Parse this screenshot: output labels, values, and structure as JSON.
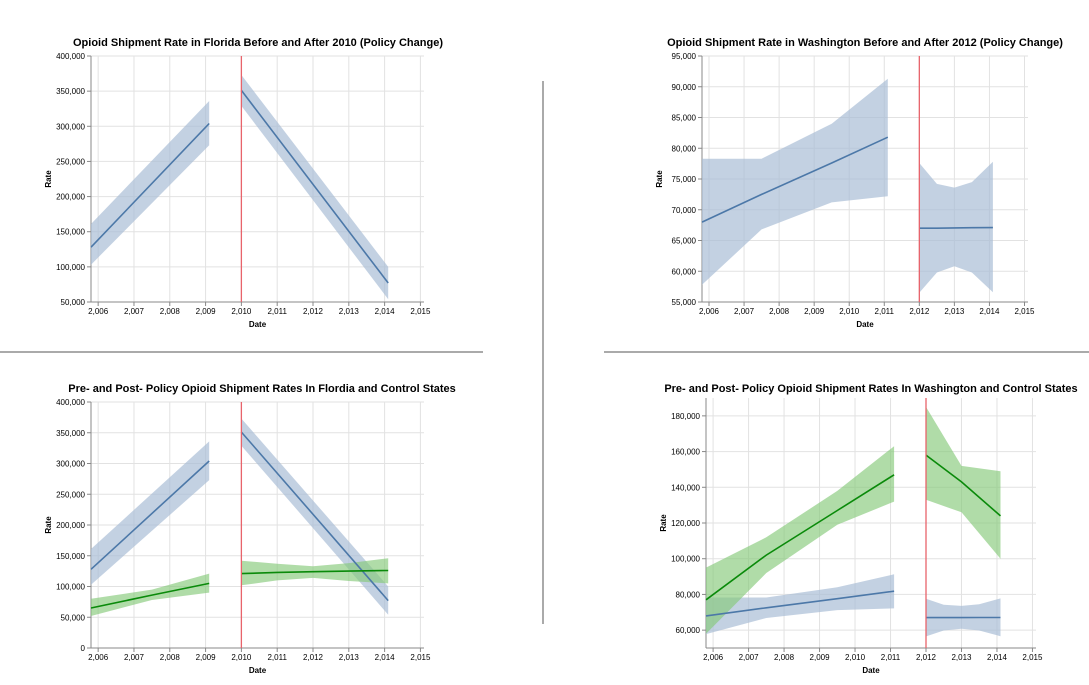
{
  "colors": {
    "treatment_line": "#4c78a8",
    "treatment_band": "#aabdd6",
    "control_line": "#0a8a0a",
    "control_band": "#86c97a",
    "policy_rule": "#e8636b",
    "grid": "#e2e2e2",
    "separator": "#555555"
  },
  "chart_data": [
    {
      "id": "fl_top",
      "type": "line",
      "title": "Opioid Shipment Rate in Florida Before and After 2010 (Policy Change)",
      "xlabel": "Date",
      "ylabel": "Rate",
      "xlim": [
        2005.8,
        2015.1
      ],
      "ylim": [
        50000,
        400000
      ],
      "x_ticks": [
        "2,006",
        "2,007",
        "2,008",
        "2,009",
        "2,010",
        "2,011",
        "2,012",
        "2,013",
        "2,014",
        "2,015"
      ],
      "y_ticks": [
        "50,000",
        "100,000",
        "150,000",
        "200,000",
        "250,000",
        "300,000",
        "350,000",
        "400,000"
      ],
      "grid": true,
      "policy_year": 2010,
      "series": [
        {
          "group": "treatment",
          "segments": [
            {
              "x": [
                2005.8,
                2009.1
              ],
              "y": [
                128000,
                304000
              ],
              "lower": [
                103000,
                273000
              ],
              "upper": [
                161000,
                336000
              ]
            },
            {
              "x": [
                2010.0,
                2014.1
              ],
              "y": [
                351000,
                77000
              ],
              "lower": [
                329000,
                54000
              ],
              "upper": [
                373000,
                100000
              ]
            }
          ]
        }
      ]
    },
    {
      "id": "wa_top",
      "type": "line",
      "title": "Opioid Shipment Rate in Washington Before and After 2012 (Policy Change)",
      "xlabel": "Date",
      "ylabel": "Rate",
      "xlim": [
        2005.8,
        2015.1
      ],
      "ylim": [
        55000,
        95000
      ],
      "x_ticks": [
        "2,006",
        "2,007",
        "2,008",
        "2,009",
        "2,010",
        "2,011",
        "2,012",
        "2,013",
        "2,014",
        "2,015"
      ],
      "y_ticks": [
        "55,000",
        "60,000",
        "65,000",
        "70,000",
        "75,000",
        "80,000",
        "85,000",
        "90,000",
        "95,000"
      ],
      "grid": true,
      "policy_year": 2012,
      "series": [
        {
          "group": "treatment",
          "segments": [
            {
              "x": [
                2005.8,
                2007.5,
                2009.5,
                2011.1
              ],
              "y": [
                68000,
                72500,
                77600,
                81800
              ],
              "lower": [
                57800,
                66800,
                71200,
                72200
              ],
              "upper": [
                78300,
                78300,
                84000,
                91300
              ]
            },
            {
              "x": [
                2012.0,
                2012.5,
                2013.0,
                2013.5,
                2014.1
              ],
              "y": [
                67000,
                67000,
                67050,
                67080,
                67100
              ],
              "lower": [
                56500,
                59800,
                60800,
                59800,
                56600
              ],
              "upper": [
                77600,
                74200,
                73600,
                74500,
                77800
              ]
            }
          ]
        }
      ]
    },
    {
      "id": "fl_bottom",
      "type": "line",
      "title": "Pre- and Post- Policy Opioid Shipment Rates In Flordia and Control States",
      "xlabel": "Date",
      "ylabel": "Rate",
      "xlim": [
        2005.8,
        2015.1
      ],
      "ylim": [
        0,
        400000
      ],
      "x_ticks": [
        "2,006",
        "2,007",
        "2,008",
        "2,009",
        "2,010",
        "2,011",
        "2,012",
        "2,013",
        "2,014",
        "2,015"
      ],
      "y_ticks": [
        "0",
        "50,000",
        "100,000",
        "150,000",
        "200,000",
        "250,000",
        "300,000",
        "350,000",
        "400,000"
      ],
      "grid": true,
      "policy_year": 2010,
      "series": [
        {
          "group": "treatment",
          "segments": [
            {
              "x": [
                2005.8,
                2009.1
              ],
              "y": [
                128000,
                304000
              ],
              "lower": [
                103000,
                273000
              ],
              "upper": [
                161000,
                336000
              ]
            },
            {
              "x": [
                2010.0,
                2014.1
              ],
              "y": [
                351000,
                77000
              ],
              "lower": [
                329000,
                54000
              ],
              "upper": [
                373000,
                100000
              ]
            }
          ]
        },
        {
          "group": "control",
          "segments": [
            {
              "x": [
                2005.8,
                2007.5,
                2009.1
              ],
              "y": [
                65000,
                86000,
                105000
              ],
              "lower": [
                52000,
                78000,
                90000
              ],
              "upper": [
                80000,
                95000,
                121000
              ]
            },
            {
              "x": [
                2010.0,
                2011.0,
                2012.0,
                2013.0,
                2014.1
              ],
              "y": [
                121000,
                123000,
                124000,
                125000,
                126000
              ],
              "lower": [
                102000,
                110000,
                114000,
                109000,
                105000
              ],
              "upper": [
                142000,
                137000,
                133000,
                138000,
                146000
              ]
            }
          ]
        }
      ]
    },
    {
      "id": "wa_bottom",
      "type": "line",
      "title": "Pre- and Post- Policy Opioid Shipment Rates In Washington and Control States",
      "xlabel": "Date",
      "ylabel": "Rate",
      "xlim": [
        2005.8,
        2015.1
      ],
      "ylim": [
        50000,
        190000
      ],
      "x_ticks": [
        "2,006",
        "2,007",
        "2,008",
        "2,009",
        "2,010",
        "2,011",
        "2,012",
        "2,013",
        "2,014",
        "2,015"
      ],
      "y_ticks": [
        "60,000",
        "80,000",
        "100,000",
        "120,000",
        "140,000",
        "160,000",
        "180,000"
      ],
      "grid": true,
      "policy_year": 2012,
      "series": [
        {
          "group": "treatment",
          "segments": [
            {
              "x": [
                2005.8,
                2007.5,
                2009.5,
                2011.1
              ],
              "y": [
                68000,
                72500,
                77600,
                81800
              ],
              "lower": [
                57800,
                66800,
                71200,
                72200
              ],
              "upper": [
                78300,
                78300,
                84000,
                91300
              ]
            },
            {
              "x": [
                2012.0,
                2012.5,
                2013.0,
                2013.5,
                2014.1
              ],
              "y": [
                67000,
                67000,
                67050,
                67080,
                67100
              ],
              "lower": [
                56500,
                59800,
                60800,
                59800,
                56600
              ],
              "upper": [
                77600,
                74200,
                73600,
                74500,
                77800
              ]
            }
          ]
        },
        {
          "group": "control",
          "segments": [
            {
              "x": [
                2005.8,
                2007.5,
                2009.5,
                2011.1
              ],
              "y": [
                77000,
                102000,
                127000,
                147000
              ],
              "lower": [
                58000,
                92000,
                119000,
                132000
              ],
              "upper": [
                95000,
                112000,
                138000,
                163000
              ]
            },
            {
              "x": [
                2012.0,
                2013.0,
                2014.1
              ],
              "y": [
                158000,
                143000,
                124000
              ],
              "lower": [
                133000,
                126000,
                100000
              ],
              "upper": [
                185000,
                152000,
                149000
              ]
            }
          ]
        }
      ]
    }
  ]
}
